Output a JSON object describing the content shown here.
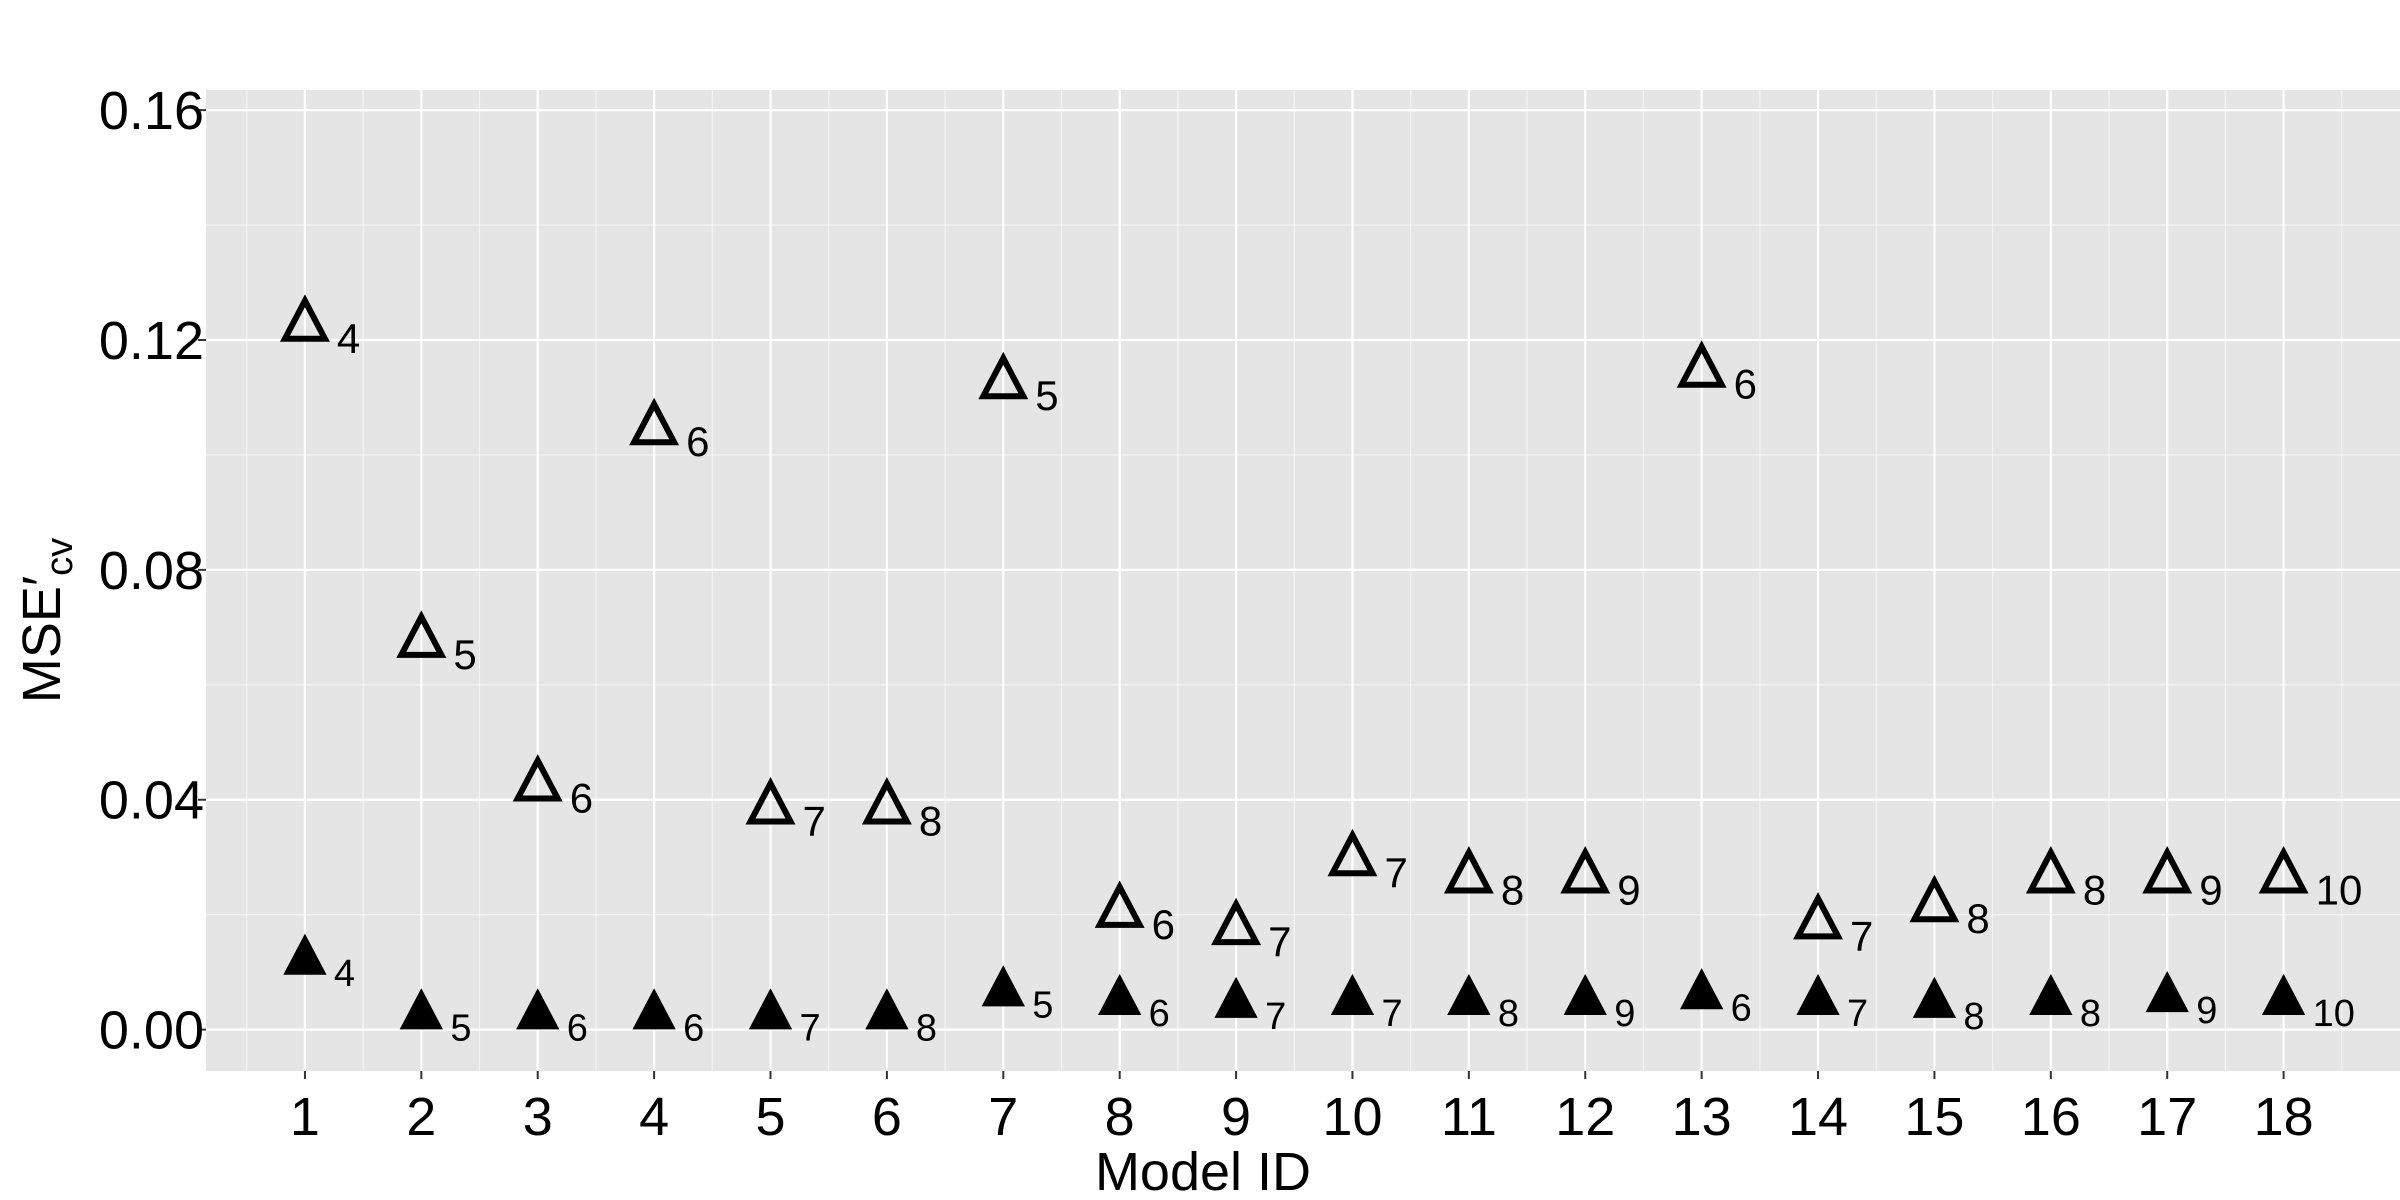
{
  "chart_data": {
    "type": "scatter",
    "title": "",
    "xlabel": "Model ID",
    "ylabel_main": "MSE′",
    "ylabel_sub": "cv",
    "xlim": [
      0.15,
      19.0
    ],
    "ylim": [
      -0.0072,
      0.1635
    ],
    "x_ticks": [
      1,
      2,
      3,
      4,
      5,
      6,
      7,
      8,
      9,
      10,
      11,
      12,
      13,
      14,
      15,
      16,
      17,
      18
    ],
    "y_ticks": [
      0.0,
      0.04,
      0.08,
      0.12,
      0.16
    ],
    "y_tick_labels": [
      "0.00",
      "0.04",
      "0.08",
      "0.12",
      "0.16"
    ],
    "grid": true,
    "legend": "none",
    "background": "#e5e5e5",
    "grid_color": "#ffffff",
    "marker_color": "#000000",
    "series": [
      {
        "marker": "open-triangle",
        "x": [
          1,
          2,
          3,
          4,
          5,
          6,
          7,
          8,
          9,
          10,
          11,
          12,
          13,
          14,
          15,
          16,
          17,
          18
        ],
        "y": [
          0.123,
          0.068,
          0.043,
          0.105,
          0.039,
          0.039,
          0.113,
          0.021,
          0.018,
          0.03,
          0.027,
          0.027,
          0.115,
          0.019,
          0.022,
          0.027,
          0.027,
          0.027
        ],
        "labels": [
          "4",
          "5",
          "6",
          "6",
          "7",
          "8",
          "5",
          "6",
          "7",
          "7",
          "8",
          "9",
          "6",
          "7",
          "8",
          "8",
          "9",
          "10"
        ]
      },
      {
        "marker": "filled-triangle",
        "x": [
          1,
          2,
          3,
          4,
          5,
          6,
          7,
          8,
          9,
          10,
          11,
          12,
          13,
          14,
          15,
          16,
          17,
          18
        ],
        "y": [
          0.0125,
          0.003,
          0.003,
          0.003,
          0.003,
          0.003,
          0.007,
          0.0055,
          0.005,
          0.0055,
          0.0055,
          0.0055,
          0.0065,
          0.0055,
          0.005,
          0.0055,
          0.006,
          0.0055
        ],
        "labels": [
          "4",
          "5",
          "6",
          "6",
          "7",
          "8",
          "5",
          "6",
          "7",
          "7",
          "8",
          "9",
          "6",
          "7",
          "8",
          "8",
          "9",
          "10"
        ]
      }
    ]
  }
}
